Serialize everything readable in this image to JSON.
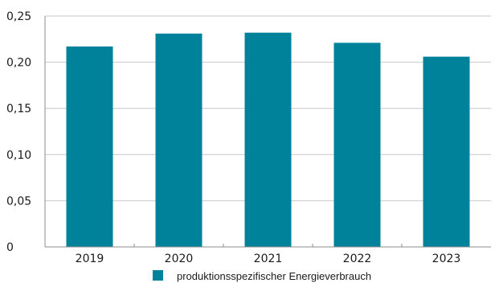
{
  "chart_data": {
    "type": "bar",
    "categories": [
      "2019",
      "2020",
      "2021",
      "2022",
      "2023"
    ],
    "series": [
      {
        "name": "produktionsspezifischer Energieverbrauch",
        "values": [
          0.217,
          0.231,
          0.232,
          0.221,
          0.206
        ]
      }
    ],
    "ylim": [
      0,
      0.25
    ],
    "yticks": [
      0,
      0.05,
      0.1,
      0.15,
      0.2,
      0.25
    ],
    "ytick_labels": [
      "0",
      "0,05",
      "0,10",
      "0,15",
      "0,20",
      "0,25"
    ],
    "grid": true,
    "legend_position": "bottom-center",
    "colors": {
      "bar": "#00829b",
      "grid": "#c8c8c8",
      "axis": "#8c8c8c"
    }
  }
}
